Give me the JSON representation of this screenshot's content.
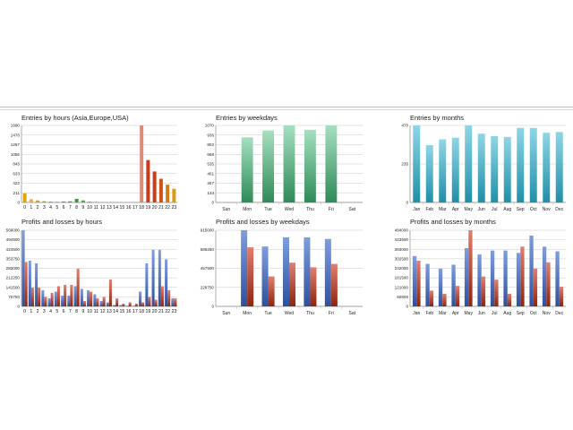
{
  "colors": {
    "grid": "#c8c8c8",
    "axis": "#8a8a8a",
    "profit": "#4f73c4",
    "loss": "#b23a22",
    "weekday_bar": "#4fb07a",
    "month_bar": "#2ca8c0"
  },
  "chart_data": [
    {
      "id": "entries-hours",
      "type": "bar",
      "title": "Entries by hours (Asia,Europe,USA)",
      "categories": [
        "0",
        "1",
        "2",
        "3",
        "4",
        "5",
        "6",
        "7",
        "8",
        "9",
        "10",
        "11",
        "12",
        "13",
        "14",
        "15",
        "16",
        "17",
        "18",
        "19",
        "20",
        "21",
        "22",
        "23"
      ],
      "yticks": [
        "1690",
        "1478",
        "1267",
        "1056",
        "845",
        "633",
        "422",
        "211",
        "0"
      ],
      "ylim": [
        0,
        1690
      ],
      "values": [
        200,
        70,
        45,
        28,
        18,
        12,
        20,
        25,
        80,
        45,
        18,
        14,
        10,
        8,
        5,
        5,
        5,
        5,
        1690,
        930,
        680,
        520,
        390,
        300
      ],
      "bar_colors": [
        "#e5a200",
        "#f0b020",
        "#d0a030",
        "#b0a030",
        "#90a030",
        "#70a030",
        "#5a9a30",
        "#4a9a3a",
        "#3c9a40",
        "#5aa050",
        "#8aa050",
        "#a0a050",
        "#b0a050",
        "#c0a050",
        "#c8a060",
        "#d0a070",
        "#d0a080",
        "#d08080",
        "#e0887a",
        "#c83c1c",
        "#cc3c1a",
        "#d0501a",
        "#d67a18",
        "#e09a10"
      ]
    },
    {
      "id": "entries-weekdays",
      "type": "bar",
      "title": "Entries by weekdays",
      "categories": [
        "Sun",
        "Mon",
        "Tue",
        "Wed",
        "Thu",
        "Fri",
        "Sat"
      ],
      "yticks": [
        "1070",
        "936",
        "802",
        "668",
        "535",
        "401",
        "267",
        "133",
        "0"
      ],
      "ylim": [
        0,
        1070
      ],
      "values": [
        0,
        905,
        1000,
        1070,
        1010,
        1070,
        0
      ]
    },
    {
      "id": "entries-months",
      "type": "bar",
      "title": "Entries by months",
      "categories": [
        "Jan",
        "Feb",
        "Mar",
        "Apr",
        "May",
        "Jun",
        "Jul",
        "Aug",
        "Sep",
        "Oct",
        "Nov",
        "Dec"
      ],
      "yticks": [
        "470",
        "235",
        "0"
      ],
      "ylim": [
        0,
        470
      ],
      "values": [
        470,
        350,
        385,
        395,
        470,
        420,
        405,
        400,
        455,
        455,
        425,
        430
      ]
    },
    {
      "id": "pl-hours",
      "type": "bar",
      "title": "Profits and losses by hours",
      "categories": [
        "0",
        "1",
        "2",
        "3",
        "4",
        "5",
        "6",
        "7",
        "8",
        "9",
        "10",
        "11",
        "12",
        "13",
        "14",
        "15",
        "16",
        "17",
        "18",
        "19",
        "20",
        "21",
        "22",
        "23"
      ],
      "yticks": [
        "566000",
        "494500",
        "424500",
        "353750",
        "283000",
        "212250",
        "141500",
        "70750",
        "0"
      ],
      "ylim": [
        0,
        566000
      ],
      "series": [
        {
          "name": "",
          "values": [
            566000,
            340000,
            320000,
            120000,
            60000,
            110000,
            80000,
            80000,
            150000,
            130000,
            120000,
            90000,
            40000,
            30000,
            10000,
            10000,
            5000,
            5000,
            110000,
            320000,
            420000,
            420000,
            350000,
            60000
          ]
        },
        {
          "name": "",
          "values": [
            330000,
            140000,
            140000,
            70000,
            100000,
            150000,
            160000,
            160000,
            280000,
            40000,
            110000,
            60000,
            70000,
            200000,
            60000,
            20000,
            30000,
            20000,
            30000,
            70000,
            50000,
            150000,
            120000,
            60000
          ]
        }
      ]
    },
    {
      "id": "pl-weekdays",
      "type": "bar",
      "title": "Profits and losses by weekdays",
      "categories": [
        "Sun",
        "Mon",
        "Tue",
        "Wed",
        "Thu",
        "Fri",
        "Sat"
      ],
      "yticks": [
        "915000",
        "686250",
        "457500",
        "228750",
        "0"
      ],
      "ylim": [
        0,
        915000
      ],
      "series": [
        {
          "name": "",
          "values": [
            0,
            915000,
            720000,
            830000,
            830000,
            810000,
            0
          ]
        },
        {
          "name": "",
          "values": [
            0,
            710000,
            360000,
            525000,
            470000,
            510000,
            0
          ]
        }
      ]
    },
    {
      "id": "pl-months",
      "type": "bar",
      "title": "Profits and losses by months",
      "categories": [
        "Jan",
        "Feb",
        "Mar",
        "Apr",
        "May",
        "Jun",
        "Jul",
        "Aug",
        "Sep",
        "Oct",
        "Nov",
        "Dec"
      ],
      "yticks": [
        "484000",
        "423500",
        "363000",
        "302500",
        "242000",
        "181500",
        "121000",
        "60500",
        "0"
      ],
      "ylim": [
        0,
        484000
      ],
      "series": [
        {
          "name": "",
          "values": [
            320000,
            270000,
            240000,
            265000,
            370000,
            330000,
            355000,
            355000,
            340000,
            450000,
            380000,
            350000
          ]
        },
        {
          "name": "",
          "values": [
            290000,
            100000,
            80000,
            130000,
            484000,
            190000,
            170000,
            80000,
            380000,
            240000,
            280000,
            125000
          ]
        }
      ]
    }
  ]
}
